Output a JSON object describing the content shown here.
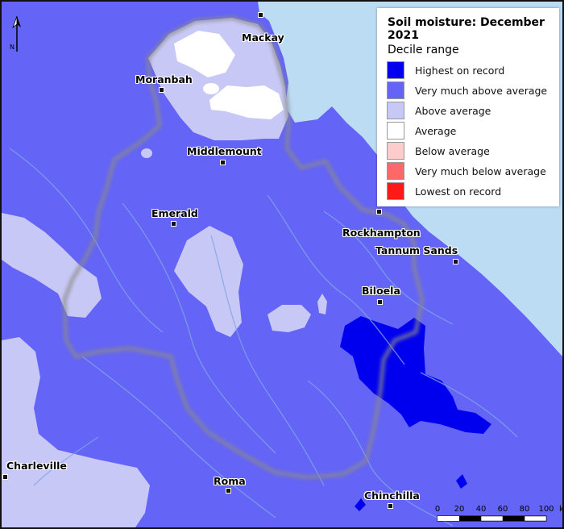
{
  "legend": {
    "title": "Soil moisture: December 2021",
    "subtitle": "Decile range",
    "items": [
      {
        "label": "Highest on record",
        "color": "#0000ee"
      },
      {
        "label": "Very much above average",
        "color": "#6464f6"
      },
      {
        "label": "Above average",
        "color": "#c8c8f6"
      },
      {
        "label": "Average",
        "color": "#ffffff"
      },
      {
        "label": "Below average",
        "color": "#ffcccc"
      },
      {
        "label": "Very much below average",
        "color": "#ff6868"
      },
      {
        "label": "Lowest on record",
        "color": "#ff1a1a"
      }
    ]
  },
  "towns": {
    "mackay": "Mackay",
    "moranbah": "Moranbah",
    "middlemount": "Middlemount",
    "emerald": "Emerald",
    "rockhampton": "Rockhampton",
    "tannum_sands": "Tannum Sands",
    "biloela": "Biloela",
    "charleville": "Charleville",
    "roma": "Roma",
    "chinchilla": "Chinchilla"
  },
  "north_arrow": {
    "label": "N"
  },
  "scale": {
    "ticks": [
      "0",
      "20",
      "40",
      "60",
      "80",
      "100"
    ],
    "unit": "km"
  },
  "colors": {
    "ocean": "#bcdcf4",
    "river": "#7fa6e8",
    "boundary": "#8a8a8a"
  }
}
